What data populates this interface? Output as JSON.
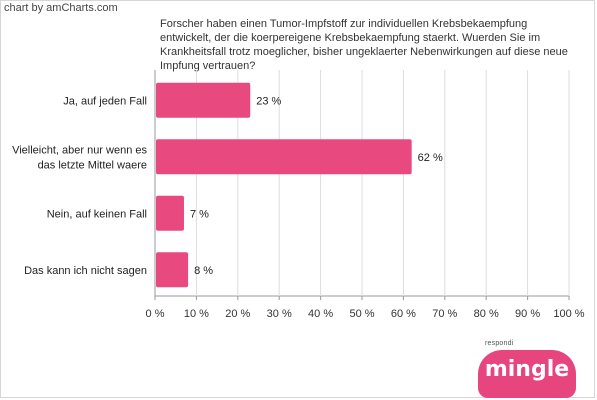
{
  "credit": "chart by amCharts.com",
  "logo": {
    "top_text": "respondi",
    "word": "mingle"
  },
  "colors": {
    "bar": "#e84a7f",
    "grid": "#dddddd",
    "axis": "#999999"
  },
  "chart_data": {
    "type": "bar",
    "orientation": "horizontal",
    "title": "Forscher haben einen Tumor-Impfstoff zur individuellen Krebsbekaempfung entwickelt, der die koerpereigene Krebsbekaempfung staerkt. Wuerden Sie im Krankheitsfall trotz moeglicher, bisher ungeklaerter Nebenwirkungen auf diese neue Impfung vertrauen?",
    "categories": [
      [
        "Ja, auf jeden Fall"
      ],
      [
        "Vielleicht, aber nur wenn es",
        "das letzte Mittel waere"
      ],
      [
        "Nein, auf keinen Fall"
      ],
      [
        "Das kann ich nicht sagen"
      ]
    ],
    "values": [
      23,
      62,
      7,
      8
    ],
    "value_labels": [
      "23 %",
      "62 %",
      "7 %",
      "8 %"
    ],
    "xlim": [
      0,
      100
    ],
    "xticks": [
      "0 %",
      "10 %",
      "20 %",
      "30 %",
      "40 %",
      "50 %",
      "60 %",
      "70 %",
      "80 %",
      "90 %",
      "100 %"
    ],
    "grid": true
  }
}
